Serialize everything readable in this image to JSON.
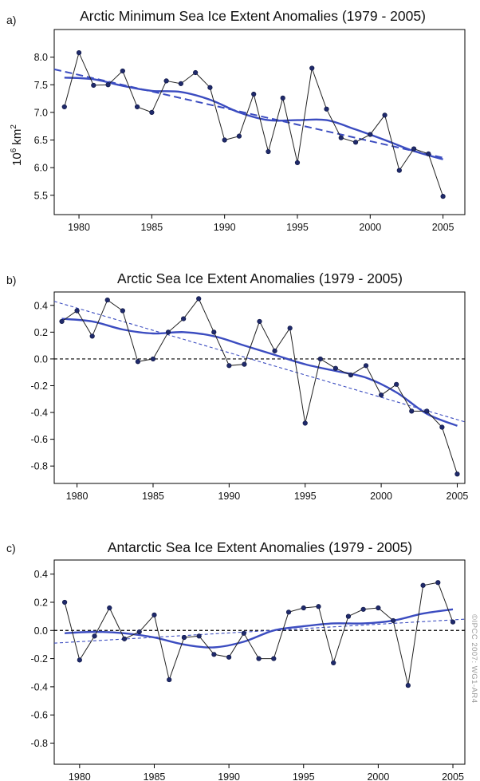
{
  "colors": {
    "trend": "#3b4cc0",
    "raw": "#222222",
    "point": "#1f2a6b",
    "zero": "#000000"
  },
  "credit": "©IPCC 2007: WG1-AR4",
  "chart_data": [
    {
      "type": "line",
      "panel": "a)",
      "title": "Arctic Minimum Sea Ice Extent Anomalies (1979 - 2005)",
      "ylabel_base": "10",
      "ylabel_exp1": "6",
      "ylabel_unit": " km",
      "ylabel_exp2": "2",
      "xlim": [
        1978.3,
        2006.5
      ],
      "ylim": [
        5.15,
        8.5
      ],
      "xticks": [
        1980,
        1985,
        1990,
        1995,
        2000,
        2005
      ],
      "yticks": [
        5.5,
        6.0,
        6.5,
        7.0,
        7.5,
        8.0
      ],
      "ytick_labels": [
        "5.5",
        "6.0",
        "6.5",
        "7.0",
        "7.5",
        "8.0"
      ],
      "zero_line": false,
      "x": [
        1979,
        1980,
        1981,
        1982,
        1983,
        1984,
        1985,
        1986,
        1987,
        1988,
        1989,
        1990,
        1991,
        1992,
        1993,
        1994,
        1995,
        1996,
        1997,
        1998,
        1999,
        2000,
        2001,
        2002,
        2003,
        2004,
        2005
      ],
      "values": [
        7.1,
        8.08,
        7.49,
        7.5,
        7.75,
        7.1,
        7.0,
        7.57,
        7.52,
        7.72,
        7.45,
        6.5,
        6.57,
        7.33,
        6.29,
        7.26,
        6.09,
        7.8,
        7.06,
        6.54,
        6.46,
        6.6,
        6.95,
        5.95,
        6.34,
        6.25,
        5.48
      ],
      "smooth_x": [
        1979,
        1981,
        1983,
        1985,
        1987,
        1989,
        1991,
        1993,
        1995,
        1997,
        1999,
        2001,
        2003,
        2005
      ],
      "smooth_y": [
        7.63,
        7.6,
        7.48,
        7.39,
        7.37,
        7.23,
        7.0,
        6.86,
        6.86,
        6.86,
        6.69,
        6.5,
        6.3,
        6.15
      ],
      "linear": {
        "x": [
          1978.3,
          2005
        ],
        "y": [
          7.78,
          6.18
        ]
      }
    },
    {
      "type": "line",
      "panel": "b)",
      "title": "Arctic Sea Ice Extent Anomalies (1979 - 2005)",
      "xlim": [
        1978.5,
        2005.5
      ],
      "ylim": [
        -0.93,
        0.5
      ],
      "xticks": [
        1980,
        1985,
        1990,
        1995,
        2000,
        2005
      ],
      "yticks": [
        -0.8,
        -0.6,
        -0.4,
        -0.2,
        0.0,
        0.2,
        0.4
      ],
      "ytick_labels": [
        "-0.8",
        "-0.6",
        "-0.4",
        "-0.2",
        "0.0",
        "0.2",
        "0.4"
      ],
      "zero_line": true,
      "x": [
        1979,
        1980,
        1981,
        1982,
        1983,
        1984,
        1985,
        1986,
        1987,
        1988,
        1989,
        1990,
        1991,
        1992,
        1993,
        1994,
        1995,
        1996,
        1997,
        1998,
        1999,
        2000,
        2001,
        2002,
        2003,
        2004,
        2005
      ],
      "values": [
        0.28,
        0.36,
        0.17,
        0.44,
        0.36,
        -0.02,
        0.0,
        0.2,
        0.3,
        0.45,
        0.2,
        -0.05,
        -0.04,
        0.28,
        0.06,
        0.23,
        -0.48,
        0.0,
        -0.07,
        -0.12,
        -0.05,
        -0.27,
        -0.19,
        -0.39,
        -0.39,
        -0.51,
        -0.86
      ],
      "smooth_x": [
        1979,
        1981,
        1983,
        1985,
        1987,
        1989,
        1991,
        1993,
        1995,
        1997,
        1999,
        2001,
        2003,
        2005
      ],
      "smooth_y": [
        0.3,
        0.28,
        0.22,
        0.19,
        0.2,
        0.17,
        0.1,
        0.03,
        -0.04,
        -0.09,
        -0.14,
        -0.25,
        -0.41,
        -0.5
      ],
      "linear": {
        "x": [
          1978.5,
          2005.5
        ],
        "y": [
          0.43,
          -0.47
        ]
      }
    },
    {
      "type": "line",
      "panel": "c)",
      "title": "Antarctic Sea Ice Extent Anomalies (1979 - 2005)",
      "xlim": [
        1978.3,
        2005.8
      ],
      "ylim": [
        -0.95,
        0.5
      ],
      "xticks": [
        1980,
        1985,
        1990,
        1995,
        2000,
        2005
      ],
      "yticks": [
        -0.8,
        -0.6,
        -0.4,
        -0.2,
        0.0,
        0.2,
        0.4
      ],
      "ytick_labels": [
        "-0.8",
        "-0.6",
        "-0.4",
        "-0.2",
        "0.0",
        "0.2",
        "0.4"
      ],
      "zero_line": true,
      "x": [
        1979,
        1980,
        1981,
        1982,
        1983,
        1984,
        1985,
        1986,
        1987,
        1988,
        1989,
        1990,
        1991,
        1992,
        1993,
        1994,
        1995,
        1996,
        1997,
        1998,
        1999,
        2000,
        2001,
        2002,
        2003,
        2004,
        2005
      ],
      "values": [
        0.2,
        -0.21,
        -0.04,
        0.16,
        -0.06,
        -0.01,
        0.11,
        -0.35,
        -0.05,
        -0.04,
        -0.17,
        -0.19,
        -0.02,
        -0.2,
        -0.2,
        0.13,
        0.16,
        0.17,
        -0.23,
        0.1,
        0.15,
        0.16,
        0.07,
        -0.39,
        0.32,
        0.34,
        0.06
      ],
      "smooth_x": [
        1979,
        1981,
        1983,
        1985,
        1987,
        1989,
        1991,
        1993,
        1995,
        1997,
        1999,
        2001,
        2003,
        2005
      ],
      "smooth_y": [
        -0.02,
        -0.01,
        -0.02,
        -0.05,
        -0.1,
        -0.12,
        -0.08,
        0.0,
        0.03,
        0.05,
        0.05,
        0.07,
        0.12,
        0.15
      ],
      "linear": {
        "x": [
          1978.3,
          2005.8
        ],
        "y": [
          -0.09,
          0.08
        ]
      }
    }
  ]
}
